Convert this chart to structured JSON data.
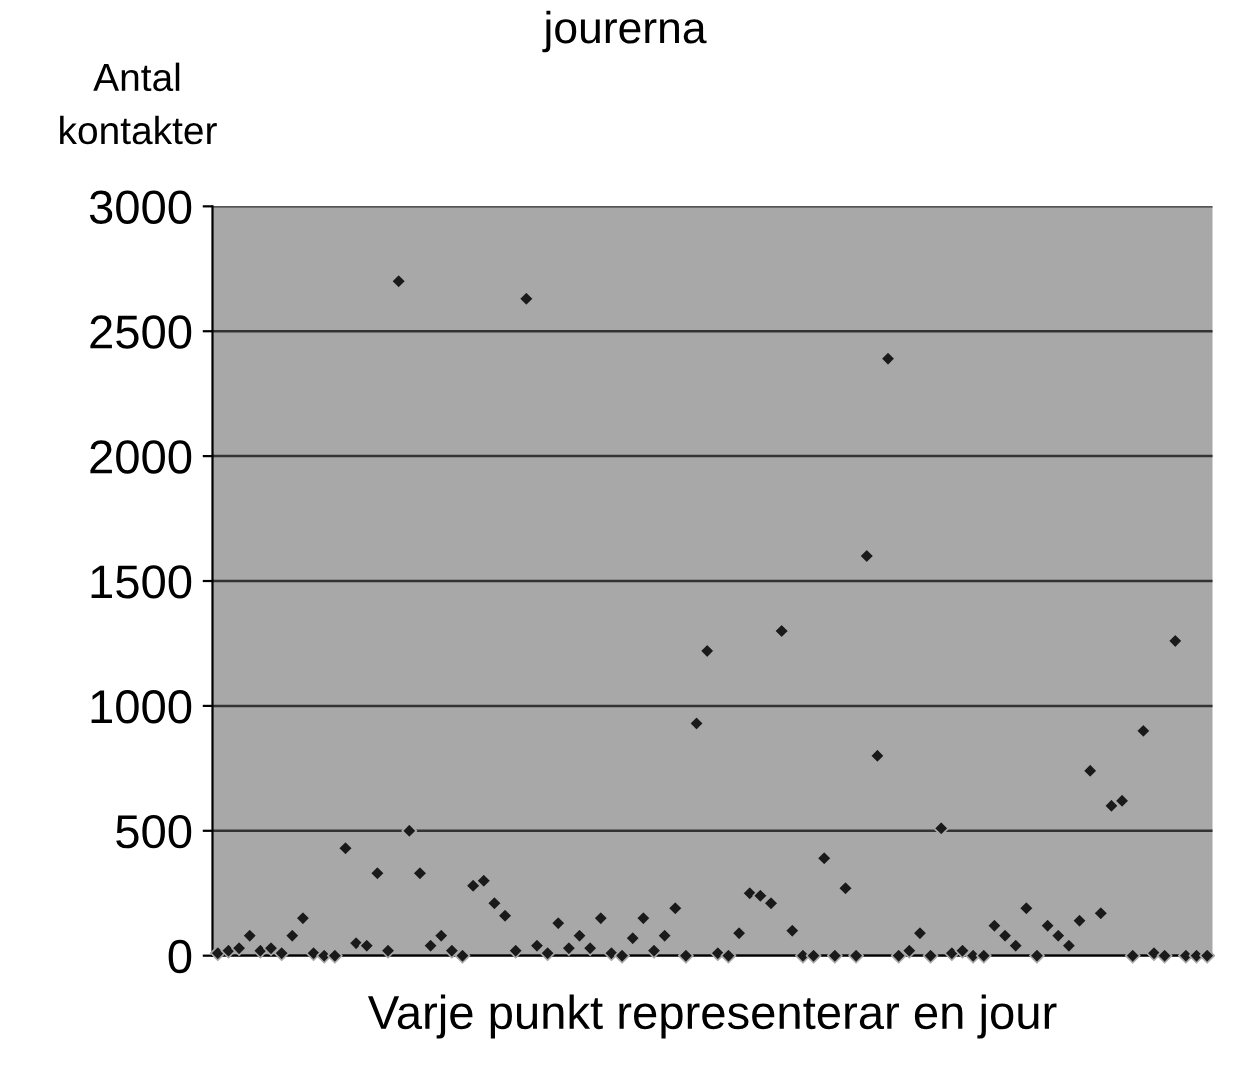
{
  "chart_data": {
    "type": "scatter",
    "title": "jourerna",
    "xlabel": "Varje punkt representerar en jour",
    "ylabel": "Antal\nkontakter",
    "categories": [
      null,
      null,
      null,
      null,
      null,
      null,
      null,
      null,
      null,
      null,
      null,
      null,
      null,
      null,
      null,
      null,
      null,
      null,
      null,
      null,
      null,
      null,
      null,
      null,
      null,
      null,
      null,
      null,
      null,
      null,
      null,
      null,
      null,
      null,
      null,
      null,
      null,
      null,
      null,
      null,
      null,
      null,
      null,
      null,
      null,
      null,
      null,
      null,
      null,
      null,
      null,
      null,
      null,
      null,
      null,
      null,
      null,
      null,
      null,
      null,
      null,
      null,
      null,
      null,
      null,
      null,
      null,
      null,
      null,
      null,
      null,
      null,
      null,
      null,
      null,
      null,
      null,
      null,
      null,
      null,
      null,
      null,
      null,
      null,
      null,
      null,
      null,
      null,
      null,
      null,
      null,
      null,
      null,
      null
    ],
    "series": [
      {
        "color": "#1a1a1a",
        "values": [
          10,
          20,
          30,
          80,
          20,
          30,
          10,
          80,
          150,
          10,
          0,
          0,
          430,
          50,
          40,
          330,
          20,
          2700,
          500,
          330,
          40,
          80,
          20,
          0,
          280,
          300,
          210,
          160,
          20,
          2630,
          40,
          10,
          130,
          30,
          80,
          30,
          150,
          10,
          0,
          70,
          150,
          20,
          80,
          190,
          0,
          930,
          1220,
          10,
          0,
          90,
          250,
          240,
          210,
          1300,
          100,
          0,
          0,
          390,
          0,
          270,
          0,
          1600,
          800,
          2390,
          0,
          20,
          90,
          0,
          510,
          10,
          20,
          0,
          0,
          120,
          80,
          40,
          190,
          0,
          120,
          80,
          40,
          140,
          740,
          170,
          600,
          620,
          0,
          900,
          10,
          0,
          1260,
          0,
          0,
          0
        ]
      }
    ],
    "ylim": [
      0,
      3000
    ],
    "yticks": [
      0,
      500,
      1000,
      1500,
      2000,
      2500,
      3000
    ],
    "grid": "y",
    "marker": "diamond",
    "tick_labels": "y"
  }
}
